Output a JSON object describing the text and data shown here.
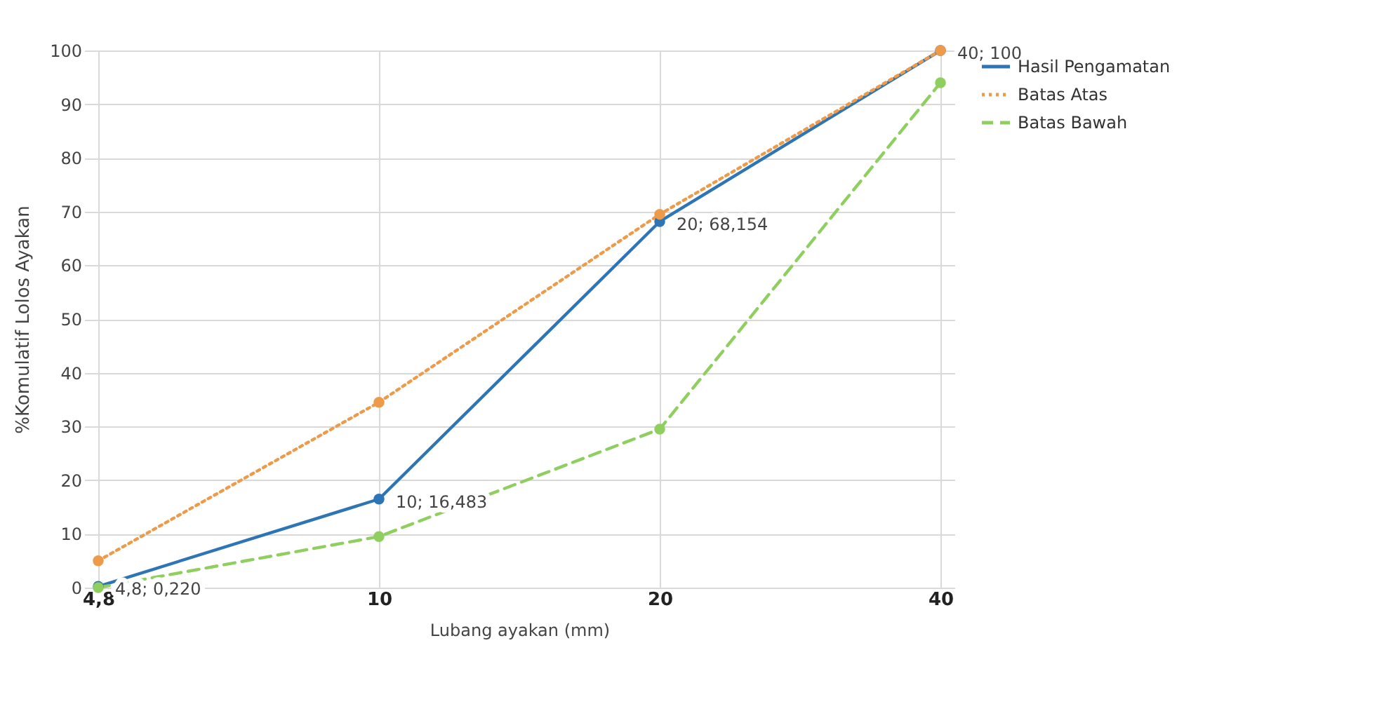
{
  "chart_data": {
    "type": "line",
    "xlabel": "Lubang ayakan (mm)",
    "ylabel": "%Komulatif Lolos Ayakan",
    "categories": [
      "4,8",
      "10",
      "20",
      "40"
    ],
    "ylim": [
      0,
      100
    ],
    "yticks": [
      0,
      10,
      20,
      30,
      40,
      50,
      60,
      70,
      80,
      90,
      100
    ],
    "grid": true,
    "legend": "right",
    "marker": "circle",
    "series": [
      {
        "name": "Hasil Pengamatan",
        "color": "#2e75b6",
        "line_style": "solid",
        "values": [
          0.22,
          16.483,
          68.154,
          100
        ],
        "value_labels": [
          "4,8; 0,220",
          "10; 16,483",
          "20; 68,154",
          "40; 100"
        ]
      },
      {
        "name": "Batas Atas",
        "color": "#ed9b4a",
        "line_style": "dotted",
        "values": [
          5,
          34.5,
          69.5,
          100
        ]
      },
      {
        "name": "Batas Bawah",
        "color": "#8fcf5f",
        "line_style": "dashed",
        "values": [
          0,
          9.5,
          29.5,
          94
        ]
      }
    ]
  }
}
